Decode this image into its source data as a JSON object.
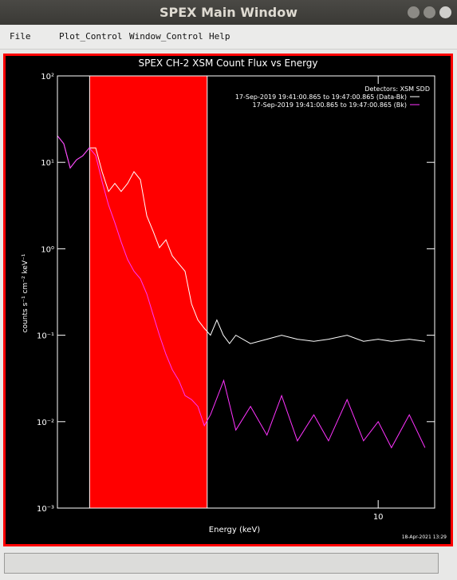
{
  "window": {
    "title": "SPEX Main Window",
    "menu": [
      "File",
      "Plot_Control",
      "Window_Control",
      "Help"
    ]
  },
  "chart_data": {
    "type": "line",
    "title": "SPEX CH-2 XSM Count Flux vs Energy",
    "x_label": "Energy (keV)",
    "y_label": "counts s⁻¹ cm⁻² keV⁻¹",
    "legend_title": "Detectors: XSM SDD",
    "footer": "18-Apr-2021 13:29",
    "xlog": true,
    "ylog": true,
    "grid": false,
    "legend": "upper right",
    "xlim": [
      1,
      15
    ],
    "xticks": [
      10
    ],
    "ylim": [
      0.001,
      100
    ],
    "yticks": [
      {
        "value": 0.001,
        "label": "10⁻³"
      },
      {
        "value": 0.01,
        "label": "10⁻²"
      },
      {
        "value": 0.1,
        "label": "10⁻¹"
      },
      {
        "value": 1,
        "label": "10⁰"
      },
      {
        "value": 10,
        "label": "10¹"
      },
      {
        "value": 100,
        "label": "10²"
      }
    ],
    "shaded_region": {
      "x": [
        1.26,
        2.93
      ],
      "color": "#ff0000"
    },
    "series": [
      {
        "name": "17-Sep-2019 19:41:00.865 to 19:47:00.865 (Data-Bk)",
        "color": "#ffffff",
        "x": [
          1.0,
          1.047,
          1.096,
          1.147,
          1.2,
          1.257,
          1.316,
          1.378,
          1.443,
          1.51,
          1.58,
          1.655,
          1.733,
          1.814,
          1.9,
          1.99,
          2.08,
          2.18,
          2.28,
          2.39,
          2.5,
          2.62,
          2.74,
          2.87,
          3.0,
          3.14,
          3.29,
          3.44,
          3.6,
          4.0,
          4.5,
          5.0,
          5.6,
          6.3,
          7.0,
          8.0,
          9.0,
          10.0,
          11.0,
          12.5,
          14.0
        ],
        "values": [
          20.3,
          16.4,
          8.6,
          10.7,
          11.9,
          14.7,
          14.7,
          7.8,
          4.6,
          5.7,
          4.6,
          5.7,
          7.8,
          6.3,
          2.4,
          1.58,
          1.03,
          1.27,
          0.83,
          0.67,
          0.55,
          0.23,
          0.15,
          0.12,
          0.1,
          0.15,
          0.1,
          0.08,
          0.1,
          0.08,
          0.09,
          0.1,
          0.09,
          0.085,
          0.09,
          0.1,
          0.085,
          0.09,
          0.085,
          0.09,
          0.085
        ]
      },
      {
        "name": "17-Sep-2019 19:41:00.865 to 19:47:00.865 (Bk)",
        "color": "#ff33ff",
        "x": [
          1.0,
          1.047,
          1.096,
          1.147,
          1.2,
          1.257,
          1.316,
          1.378,
          1.443,
          1.51,
          1.58,
          1.655,
          1.733,
          1.814,
          1.9,
          1.99,
          2.08,
          2.18,
          2.28,
          2.39,
          2.5,
          2.62,
          2.74,
          2.87,
          3.0,
          3.3,
          3.6,
          4.0,
          4.5,
          5.0,
          5.6,
          6.3,
          7.0,
          8.0,
          9.0,
          10.0,
          11.0,
          12.5,
          14.0
        ],
        "values": [
          20.3,
          16.4,
          8.6,
          10.7,
          11.9,
          14.7,
          12,
          6,
          3.2,
          2.0,
          1.2,
          0.75,
          0.55,
          0.45,
          0.3,
          0.17,
          0.1,
          0.06,
          0.04,
          0.03,
          0.02,
          0.018,
          0.015,
          0.009,
          0.012,
          0.03,
          0.008,
          0.015,
          0.007,
          0.02,
          0.006,
          0.012,
          0.006,
          0.018,
          0.006,
          0.01,
          0.005,
          0.012,
          0.005
        ]
      }
    ]
  }
}
